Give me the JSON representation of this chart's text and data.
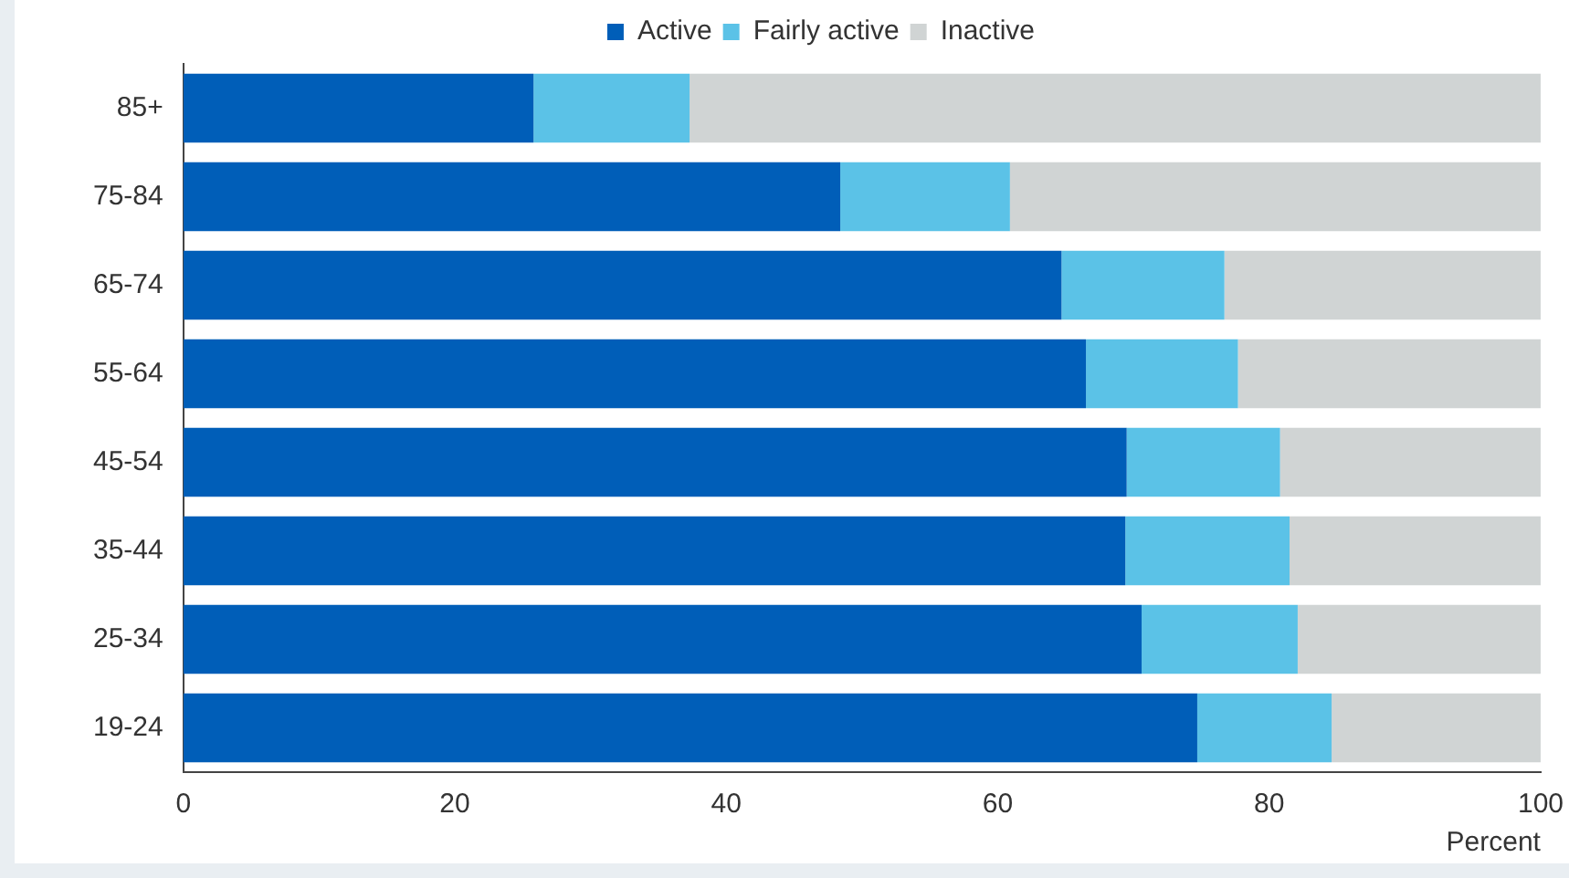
{
  "chart_data": {
    "type": "bar",
    "orientation": "horizontal",
    "stacked": true,
    "xlabel": "Percent",
    "legend": "top",
    "categories": [
      "85+",
      "75-84",
      "65-74",
      "55-64",
      "45-54",
      "35-44",
      "25-34",
      "19-24"
    ],
    "series": [
      {
        "name": "Active",
        "color": "#005eb8",
        "values": [
          25.8,
          48.4,
          64.7,
          66.5,
          69.5,
          69.4,
          70.6,
          74.7
        ]
      },
      {
        "name": "Fairly active",
        "color": "#5bc2e7",
        "values": [
          11.5,
          12.5,
          12.0,
          11.2,
          11.3,
          12.1,
          11.5,
          9.9
        ]
      },
      {
        "name": "Inactive",
        "color": "#d0d4d4",
        "values": [
          62.7,
          39.1,
          23.3,
          22.3,
          19.2,
          18.5,
          17.9,
          15.4
        ]
      }
    ],
    "xlim": [
      0,
      100
    ],
    "xticks": [
      0,
      20,
      40,
      60,
      80,
      100
    ]
  }
}
